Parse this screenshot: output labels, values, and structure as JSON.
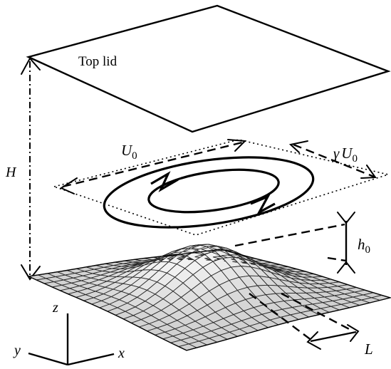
{
  "labels": {
    "top_lid": "Top lid",
    "height": "H",
    "velocity": "U",
    "velocity_sub": "0",
    "gamma_velocity_gamma": "γ",
    "gamma_velocity_u": "U",
    "gamma_velocity_sub": "0",
    "hill_height": "h",
    "hill_height_sub": "0",
    "hill_width": "L",
    "axis_x": "x",
    "axis_y": "y",
    "axis_z": "z"
  },
  "colors": {
    "line": "#000000",
    "surface": "#d9d9d9",
    "mesh": "#2a2a2a",
    "background": "#ffffff"
  }
}
